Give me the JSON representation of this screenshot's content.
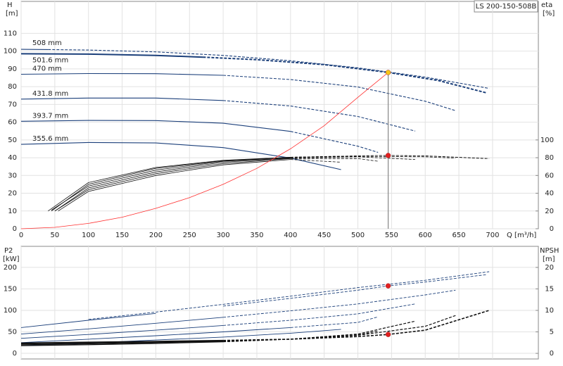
{
  "chart_data": [
    {
      "type": "line",
      "title": "LS 200-150-508B",
      "xlabel": "Q [m³/h]",
      "ylabel": "H",
      "ylabel_unit": "[m]",
      "y2label": "eta",
      "y2label_unit": "[%]",
      "xlim": [
        0,
        768
      ],
      "xticks": [
        0,
        50,
        100,
        150,
        200,
        250,
        300,
        350,
        400,
        450,
        500,
        550,
        600,
        650,
        700
      ],
      "ylim": [
        0,
        128
      ],
      "yticks": [
        0,
        10,
        20,
        30,
        40,
        50,
        60,
        70,
        80,
        90,
        100,
        110
      ],
      "y2lim": [
        0,
        256
      ],
      "y2ticks": [
        0,
        20,
        40,
        60,
        80,
        100
      ],
      "grid": true,
      "series": [
        {
          "name": "508 mm",
          "color": "#1b3f7a",
          "width": 1.1,
          "dashed_from": 40,
          "x": [
            0,
            40,
            100,
            200,
            300,
            400,
            500,
            600,
            695
          ],
          "values": [
            101,
            100.9,
            100.6,
            99.6,
            97.6,
            94.6,
            90.6,
            85.4,
            79
          ]
        },
        {
          "name": "501.6 mm",
          "color": "#1b3f7a",
          "width": 2,
          "dashed_from": 270,
          "x": [
            0,
            100,
            200,
            270,
            350,
            450,
            545,
            620,
            690
          ],
          "values": [
            98.5,
            98.3,
            97.6,
            96.6,
            95.2,
            92.4,
            88,
            83.4,
            76.6
          ]
        },
        {
          "name": "470 mm",
          "color": "#1b3f7a",
          "width": 1.1,
          "dashed_from": 300,
          "x": [
            0,
            100,
            200,
            300,
            400,
            500,
            600,
            645
          ],
          "values": [
            87,
            87.4,
            87.3,
            86.4,
            84,
            79.8,
            71.8,
            66.5
          ]
        },
        {
          "name": "431.8 mm",
          "color": "#1b3f7a",
          "width": 1.1,
          "dashed_from": 300,
          "x": [
            0,
            100,
            200,
            300,
            400,
            500,
            585
          ],
          "values": [
            73,
            73.6,
            73.6,
            72.2,
            69.1,
            63.2,
            55
          ]
        },
        {
          "name": "393.7 mm",
          "color": "#1b3f7a",
          "width": 1.1,
          "dashed_from": 400,
          "x": [
            0,
            100,
            200,
            300,
            400,
            500,
            530
          ],
          "values": [
            60.5,
            61,
            60.9,
            59.4,
            54.8,
            46.5,
            43
          ]
        },
        {
          "name": "355.6 mm",
          "color": "#1b3f7a",
          "width": 1.1,
          "x": [
            0,
            100,
            200,
            300,
            400,
            475
          ],
          "values": [
            47.5,
            48.6,
            48.3,
            45.7,
            39.8,
            33.3
          ]
        },
        {
          "axis": "y2",
          "color": "#111111",
          "width": 0.8,
          "dashed_from": 400,
          "x": [
            40,
            100,
            200,
            300,
            400,
            500,
            545,
            600,
            695
          ],
          "values": [
            20,
            52,
            69,
            77,
            80.5,
            82,
            82.5,
            82,
            79
          ]
        },
        {
          "axis": "y2",
          "color": "#111111",
          "width": 0.8,
          "dashed_from": 400,
          "x": [
            45,
            100,
            200,
            300,
            400,
            500,
            545,
            600,
            690
          ],
          "values": [
            20,
            50,
            68,
            76.5,
            80.5,
            82,
            82.5,
            82,
            79
          ]
        },
        {
          "axis": "y2",
          "color": "#111111",
          "width": 0.8,
          "dashed_from": 400,
          "x": [
            45,
            100,
            200,
            300,
            400,
            500,
            600,
            645
          ],
          "values": [
            21,
            48,
            66,
            76,
            80,
            81.5,
            81,
            79.5
          ]
        },
        {
          "axis": "y2",
          "color": "#111111",
          "width": 0.8,
          "dashed_from": 400,
          "x": [
            50,
            100,
            200,
            300,
            400,
            500,
            585
          ],
          "values": [
            20,
            46,
            64,
            75,
            79.5,
            81,
            78
          ]
        },
        {
          "axis": "y2",
          "color": "#111111",
          "width": 0.8,
          "dashed_from": 400,
          "x": [
            50,
            100,
            200,
            300,
            400,
            500,
            530
          ],
          "values": [
            20,
            44,
            62,
            73.5,
            79,
            79,
            76
          ]
        },
        {
          "axis": "y2",
          "color": "#111111",
          "width": 0.8,
          "dashed_from": 400,
          "x": [
            55,
            100,
            200,
            300,
            400,
            475
          ],
          "values": [
            20,
            42,
            60,
            72,
            78,
            75
          ]
        },
        {
          "color": "#ff3030",
          "width": 0.8,
          "x": [
            0,
            50,
            100,
            150,
            200,
            250,
            300,
            350,
            400,
            450,
            500,
            545
          ],
          "values": [
            0,
            0.8,
            3,
            6.5,
            11.5,
            17.5,
            25,
            34,
            45,
            58,
            74,
            88
          ]
        }
      ],
      "markers": [
        {
          "x": 545,
          "y": 88,
          "color": "#f5c518",
          "drop_line": true
        },
        {
          "x": 545,
          "y": 82.5,
          "axis": "y2",
          "color": "#e02020"
        }
      ]
    },
    {
      "type": "line",
      "ylabel": "P2",
      "ylabel_unit": "[kW]",
      "y2label": "NPSH",
      "y2label_unit": "[m]",
      "xlim": [
        0,
        768
      ],
      "xticks": [
        0,
        50,
        100,
        150,
        200,
        250,
        300,
        350,
        400,
        450,
        500,
        550,
        600,
        650,
        700
      ],
      "ylim": [
        -13,
        249
      ],
      "yticks": [
        0,
        50,
        100,
        150,
        200
      ],
      "y2lim": [
        -1.3,
        24.9
      ],
      "y2ticks": [
        0,
        5,
        10,
        15,
        20
      ],
      "grid": true,
      "series": [
        {
          "color": "#1b3f7a",
          "width": 0.9,
          "dashed_from": 40,
          "x": [
            0,
            100,
            200,
            300,
            400,
            500,
            600,
            695
          ],
          "values": [
            62,
            79,
            96,
            114,
            133,
            153,
            170,
            190
          ]
        },
        {
          "color": "#1b3f7a",
          "width": 0.9,
          "dashed_from": 270,
          "x": [
            0,
            100,
            200,
            300,
            400,
            500,
            545,
            600,
            690
          ],
          "values": [
            60,
            77,
            93,
            110,
            128,
            147,
            157,
            166,
            183
          ]
        },
        {
          "color": "#1b3f7a",
          "width": 0.9,
          "dashed_from": 300,
          "x": [
            0,
            100,
            200,
            300,
            400,
            500,
            600,
            645
          ],
          "values": [
            45,
            57,
            70,
            84,
            99,
            115,
            136,
            147
          ]
        },
        {
          "color": "#1b3f7a",
          "width": 0.9,
          "dashed_from": 300,
          "x": [
            0,
            100,
            200,
            300,
            400,
            500,
            585
          ],
          "values": [
            35,
            44,
            54,
            65,
            77,
            92,
            115
          ]
        },
        {
          "color": "#1b3f7a",
          "width": 0.9,
          "dashed_from": 400,
          "x": [
            0,
            100,
            200,
            300,
            400,
            500,
            530
          ],
          "values": [
            25,
            33,
            41,
            50,
            60,
            72,
            85
          ]
        },
        {
          "color": "#1b3f7a",
          "width": 0.9,
          "x": [
            0,
            100,
            200,
            300,
            400,
            475
          ],
          "values": [
            18,
            24,
            31,
            38,
            47,
            56
          ]
        },
        {
          "axis": "y2",
          "color": "#111111",
          "width": 1.6,
          "dashed_from": 300,
          "x": [
            0,
            100,
            200,
            300,
            400,
            500,
            545,
            600,
            695
          ],
          "values": [
            2.4,
            2.6,
            2.8,
            3.0,
            3.3,
            3.9,
            4.4,
            5.4,
            10
          ]
        },
        {
          "axis": "y2",
          "color": "#111111",
          "width": 1.2,
          "dashed_from": 300,
          "x": [
            0,
            100,
            200,
            300,
            400,
            500,
            600,
            645
          ],
          "values": [
            2.2,
            2.4,
            2.6,
            2.9,
            3.3,
            4.2,
            6.3,
            8.8
          ]
        },
        {
          "axis": "y2",
          "color": "#111111",
          "width": 1.2,
          "dashed_from": 300,
          "x": [
            0,
            100,
            200,
            300,
            400,
            500,
            585
          ],
          "values": [
            2,
            2.2,
            2.5,
            2.8,
            3.3,
            4.5,
            7.5
          ]
        },
        {
          "axis": "y2",
          "color": "#111111",
          "width": 1.2,
          "dashed_from": 300,
          "x": [
            0,
            100,
            200,
            300,
            400,
            500,
            530
          ],
          "values": [
            1.8,
            2,
            2.3,
            2.7,
            3.3,
            4.3,
            5.2
          ]
        }
      ],
      "markers": [
        {
          "x": 545,
          "y": 157,
          "color": "#e02020"
        },
        {
          "x": 545,
          "y": 4.4,
          "axis": "y2",
          "color": "#e02020"
        }
      ]
    }
  ]
}
